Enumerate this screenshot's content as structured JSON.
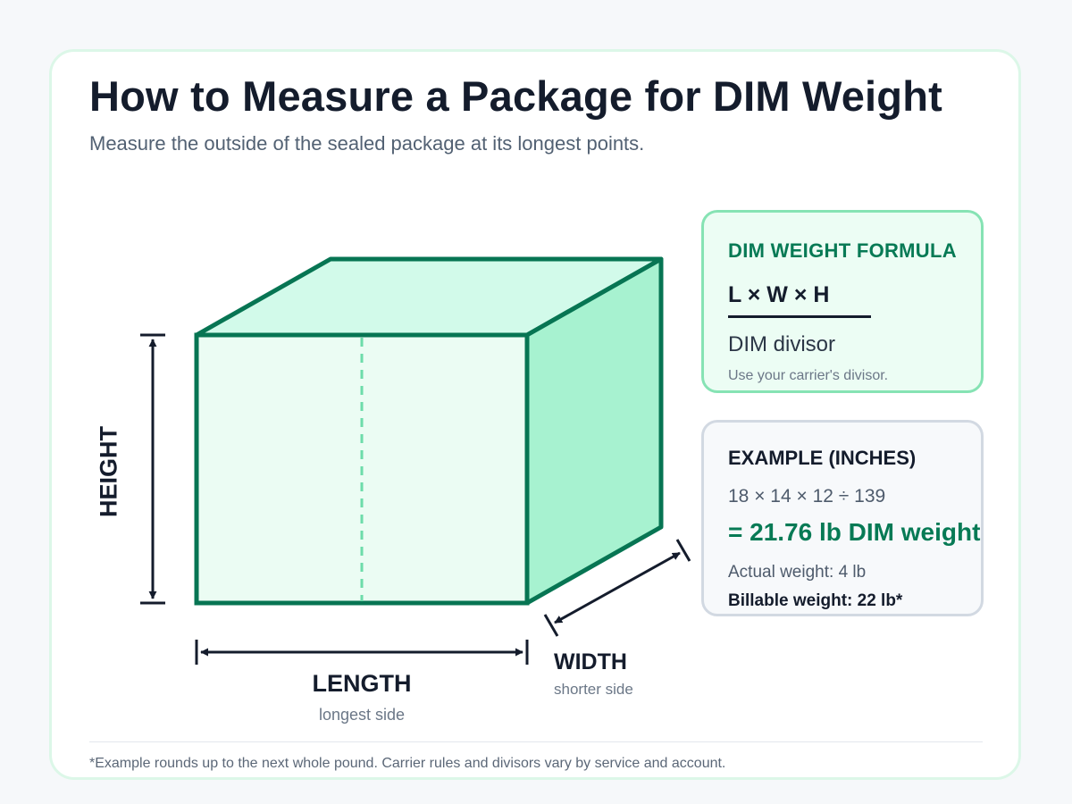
{
  "title": "How to Measure a Package for DIM Weight",
  "subtitle": "Measure the outside of the sealed package at its longest points.",
  "diagram": {
    "height_label": "HEIGHT",
    "length_label": "LENGTH",
    "length_note": "longest side",
    "width_label": "WIDTH",
    "width_note": "shorter side"
  },
  "formula_panel": {
    "heading": "DIM WEIGHT FORMULA",
    "numerator": "L × W × H",
    "denominator": "DIM divisor",
    "note": "Use your carrier's divisor."
  },
  "example_panel": {
    "heading": "EXAMPLE (INCHES)",
    "calculation": "18 × 14 × 12 ÷ 139",
    "result": "= 21.76 lb DIM weight",
    "actual_weight": "Actual weight: 4 lb",
    "billable_weight": "Billable weight: 22 lb*"
  },
  "footnote": "*Example rounds up to the next whole pound. Carrier rules and divisors vary by service and account.",
  "colors": {
    "box_stroke": "#077553",
    "box_front": "#ebfcf3",
    "box_top": "#d2faea",
    "box_side": "#a7f2d0",
    "accent_green": "#077a55",
    "dark": "#141c2c"
  }
}
